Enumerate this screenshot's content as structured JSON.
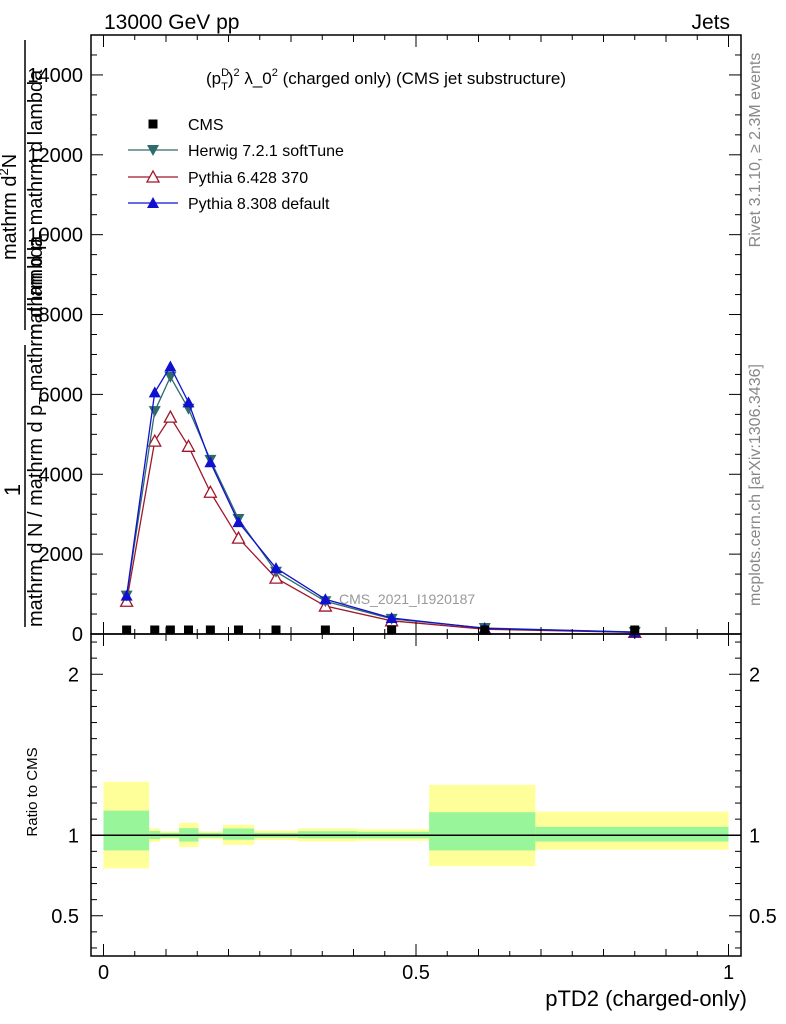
{
  "header": {
    "energy_label": "13000 GeV pp",
    "category_label": "Jets"
  },
  "side_labels": {
    "rivet": "Rivet 3.1.10, ≥ 2.3M events",
    "mcplots": "mcplots.cern.ch [arXiv:1306.3436]"
  },
  "chart_data": [
    {
      "type": "line",
      "title": "(p_T^D)^2 λ_0^2 (charged only) (CMS jet substructure)",
      "title_parts": {
        "open": "(p",
        "sup": "D",
        "sub": "T",
        "close": ")",
        "sup2": "2",
        "mid": " λ_0",
        "sup3": "2",
        "rest": " (charged only) (CMS jet substructure)"
      },
      "ylabel_parts": {
        "one": "1",
        "denom_a": "mathrm d N / mathrm d p",
        "sub_a": "T",
        "denom_b": " mathrm d lambda",
        "num_a": "mathrm d",
        "num_sup": "2",
        "num_b": "N",
        "num_c": "mathrm d p",
        "num_sub": "T",
        "num_d": " mathrm d lambda"
      },
      "watermark": "CMS_2021_I1920187",
      "ylim": [
        0,
        15000
      ],
      "xlim": [
        -0.02,
        1.02
      ],
      "yticks": [
        0,
        2000,
        4000,
        6000,
        8000,
        10000,
        12000,
        14000
      ],
      "ytick_labels": [
        "0",
        "2000",
        "4000",
        "6000",
        "8000",
        "10000",
        "12000",
        "14000"
      ],
      "legend_position": "top-left",
      "colors": {
        "cms": "#000000",
        "herwig": "#2f6b6b",
        "pythia6": "#a0162a",
        "pythia8": "#1010d0"
      },
      "series": [
        {
          "name": "CMS",
          "marker": "square",
          "x": [
            0.037,
            0.082,
            0.107,
            0.136,
            0.171,
            0.216,
            0.276,
            0.355,
            0.461,
            0.61,
            0.85
          ],
          "y": [
            20,
            30,
            30,
            30,
            25,
            20,
            15,
            10,
            8,
            3,
            1
          ]
        },
        {
          "name": "Herwig 7.2.1 softTune",
          "marker": "triangle-down",
          "x": [
            0.037,
            0.082,
            0.107,
            0.136,
            0.171,
            0.216,
            0.276,
            0.355,
            0.461,
            0.61,
            0.85
          ],
          "y": [
            960,
            5580,
            6440,
            5640,
            4360,
            2880,
            1560,
            820,
            380,
            150,
            50
          ]
        },
        {
          "name": "Pythia 6.428 370",
          "marker": "triangle-up-open",
          "x": [
            0.037,
            0.082,
            0.107,
            0.136,
            0.171,
            0.216,
            0.276,
            0.355,
            0.461,
            0.61,
            0.85
          ],
          "y": [
            820,
            4830,
            5430,
            4700,
            3550,
            2400,
            1400,
            700,
            330,
            120,
            40
          ]
        },
        {
          "name": "Pythia 8.308 default",
          "marker": "triangle-up",
          "x": [
            0.037,
            0.082,
            0.107,
            0.136,
            0.171,
            0.216,
            0.276,
            0.355,
            0.461,
            0.61,
            0.85
          ],
          "y": [
            960,
            6050,
            6700,
            5800,
            4300,
            2800,
            1650,
            870,
            400,
            140,
            45
          ]
        }
      ]
    },
    {
      "type": "area",
      "ylabel": "Ratio to CMS",
      "xlabel": "pTD2 (charged-only)",
      "ylim": [
        0.25,
        2.25
      ],
      "xlim": [
        -0.02,
        1.02
      ],
      "xticks": [
        0,
        0.5,
        1
      ],
      "xtick_labels": [
        "0",
        "0.5",
        "1"
      ],
      "yticks": [
        0.5,
        1,
        2
      ],
      "ytick_labels": [
        "0.5",
        "1",
        "2"
      ],
      "colors": {
        "inner": "#99f599",
        "outer": "#ffff99",
        "line": "#000000"
      },
      "bins": [
        {
          "lo": 0.0,
          "hi": 0.073,
          "inner": [
            0.906,
            1.153
          ],
          "outer": [
            0.794,
            1.332
          ]
        },
        {
          "lo": 0.073,
          "hi": 0.091,
          "inner": [
            0.976,
            1.026
          ],
          "outer": [
            0.959,
            1.042
          ]
        },
        {
          "lo": 0.091,
          "hi": 0.121,
          "inner": [
            0.985,
            1.015
          ],
          "outer": [
            0.976,
            1.024
          ]
        },
        {
          "lo": 0.121,
          "hi": 0.152,
          "inner": [
            0.961,
            1.044
          ],
          "outer": [
            0.927,
            1.077
          ]
        },
        {
          "lo": 0.152,
          "hi": 0.191,
          "inner": [
            0.985,
            1.015
          ],
          "outer": [
            0.976,
            1.024
          ]
        },
        {
          "lo": 0.191,
          "hi": 0.241,
          "inner": [
            0.972,
            1.042
          ],
          "outer": [
            0.94,
            1.065
          ]
        },
        {
          "lo": 0.241,
          "hi": 0.311,
          "inner": [
            0.985,
            1.015
          ],
          "outer": [
            0.97,
            1.03
          ]
        },
        {
          "lo": 0.311,
          "hi": 0.406,
          "inner": [
            0.981,
            1.025
          ],
          "outer": [
            0.961,
            1.042
          ]
        },
        {
          "lo": 0.406,
          "hi": 0.521,
          "inner": [
            0.981,
            1.022
          ],
          "outer": [
            0.966,
            1.038
          ]
        },
        {
          "lo": 0.521,
          "hi": 0.691,
          "inner": [
            0.906,
            1.143
          ],
          "outer": [
            0.808,
            1.313
          ]
        },
        {
          "lo": 0.691,
          "hi": 1.0,
          "inner": [
            0.961,
            1.052
          ],
          "outer": [
            0.91,
            1.147
          ]
        }
      ]
    }
  ]
}
